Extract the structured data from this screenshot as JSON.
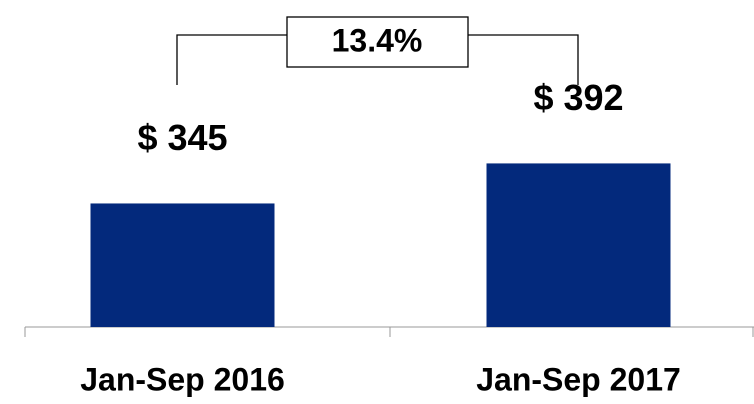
{
  "chart_data": {
    "type": "bar",
    "categories": [
      "Jan-Sep 2016",
      "Jan-Sep 2017"
    ],
    "values": [
      345,
      392
    ],
    "value_labels": [
      "$ 345",
      "$ 392"
    ],
    "color": "#03297c",
    "annotation": "13.4%",
    "ylim": [
      200,
      450
    ]
  }
}
